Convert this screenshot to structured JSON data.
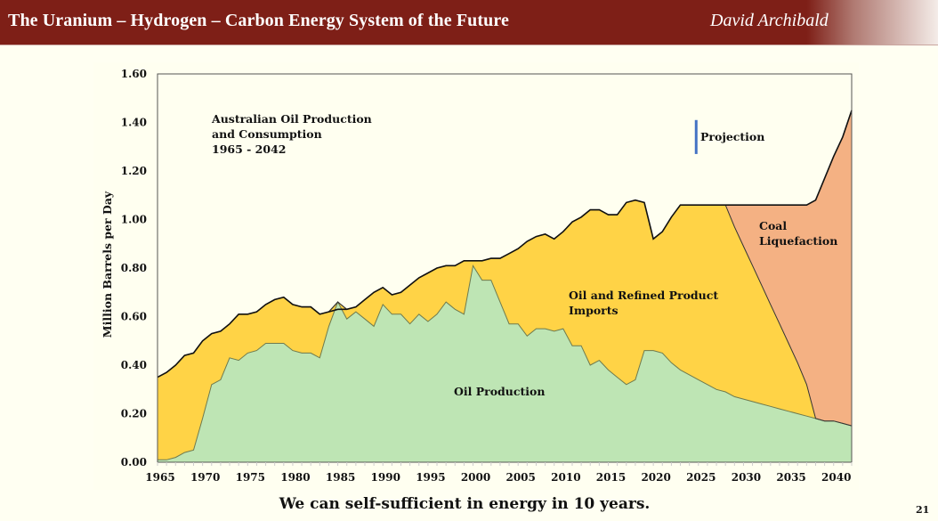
{
  "header": {
    "title": "The Uranium – Hydrogen – Carbon Energy System of the Future",
    "author": "David Archibald"
  },
  "caption": "We can self-sufficient in energy in 10 years.",
  "page_number": "21",
  "colors": {
    "header_bg": "#7E1F17",
    "production": "#BEE5B4",
    "imports": "#FFD346",
    "coal": "#F4B183",
    "consumption_line": "#111111",
    "projection_marker": "#4472C4",
    "plot_bg": "#FFFFF2"
  },
  "chart_data": {
    "type": "area",
    "stacked": true,
    "title": "Australian Oil Production and Consumption 1965 - 2042",
    "title_lines": [
      "Australian Oil Production",
      "and Consumption",
      "1965 - 2042"
    ],
    "xlabel": "",
    "ylabel": "Million Barrels per Day",
    "xlim": [
      1965,
      2042
    ],
    "ylim": [
      0,
      1.6
    ],
    "yticks": [
      "0.00",
      "0.20",
      "0.40",
      "0.60",
      "0.80",
      "1.00",
      "1.20",
      "1.40",
      "1.60"
    ],
    "ytick_values": [
      0,
      0.2,
      0.4,
      0.6,
      0.8,
      1.0,
      1.2,
      1.4,
      1.6
    ],
    "xticks": [
      "1965",
      "1970",
      "1975",
      "1980",
      "1985",
      "1990",
      "1995",
      "2000",
      "2005",
      "2010",
      "2015",
      "2020",
      "2025",
      "2030",
      "2035",
      "2040"
    ],
    "xtick_values": [
      1965,
      1970,
      1975,
      1980,
      1985,
      1990,
      1995,
      2000,
      2005,
      2010,
      2015,
      2020,
      2025,
      2030,
      2035,
      2040
    ],
    "grid": false,
    "projection_start": 2024,
    "annotations": {
      "projection": "Projection",
      "production": "Oil Production",
      "imports": [
        "Oil and Refined Product",
        "Imports"
      ],
      "coal": [
        "Coal",
        "Liquefaction"
      ]
    },
    "x": [
      1965,
      1966,
      1967,
      1968,
      1969,
      1970,
      1971,
      1972,
      1973,
      1974,
      1975,
      1976,
      1977,
      1978,
      1979,
      1980,
      1981,
      1982,
      1983,
      1984,
      1985,
      1986,
      1987,
      1988,
      1989,
      1990,
      1991,
      1992,
      1993,
      1994,
      1995,
      1996,
      1997,
      1998,
      1999,
      2000,
      2001,
      2002,
      2003,
      2004,
      2005,
      2006,
      2007,
      2008,
      2009,
      2010,
      2011,
      2012,
      2013,
      2014,
      2015,
      2016,
      2017,
      2018,
      2019,
      2020,
      2021,
      2022,
      2023,
      2024,
      2025,
      2026,
      2027,
      2028,
      2029,
      2030,
      2031,
      2032,
      2033,
      2034,
      2035,
      2036,
      2037,
      2038,
      2039,
      2040,
      2041,
      2042
    ],
    "series": [
      {
        "name": "Oil Production",
        "values": [
          0.01,
          0.01,
          0.02,
          0.04,
          0.05,
          0.18,
          0.32,
          0.34,
          0.43,
          0.42,
          0.45,
          0.46,
          0.49,
          0.49,
          0.49,
          0.46,
          0.45,
          0.45,
          0.43,
          0.56,
          0.66,
          0.59,
          0.62,
          0.59,
          0.56,
          0.65,
          0.61,
          0.61,
          0.57,
          0.61,
          0.58,
          0.61,
          0.66,
          0.63,
          0.61,
          0.81,
          0.75,
          0.75,
          0.66,
          0.57,
          0.57,
          0.52,
          0.55,
          0.55,
          0.54,
          0.55,
          0.48,
          0.48,
          0.4,
          0.42,
          0.38,
          0.35,
          0.32,
          0.34,
          0.46,
          0.46,
          0.45,
          0.41,
          0.38,
          0.36,
          0.34,
          0.32,
          0.3,
          0.29,
          0.27,
          0.26,
          0.25,
          0.24,
          0.23,
          0.22,
          0.21,
          0.2,
          0.19,
          0.18,
          0.17,
          0.17,
          0.16,
          0.15
        ]
      },
      {
        "name": "Oil and Refined Product Imports",
        "values": [
          0.34,
          0.36,
          0.38,
          0.4,
          0.4,
          0.32,
          0.21,
          0.2,
          0.14,
          0.19,
          0.16,
          0.16,
          0.16,
          0.18,
          0.19,
          0.19,
          0.19,
          0.19,
          0.18,
          0.06,
          0.0,
          0.04,
          0.02,
          0.08,
          0.14,
          0.07,
          0.08,
          0.09,
          0.16,
          0.15,
          0.2,
          0.19,
          0.15,
          0.18,
          0.22,
          0.02,
          0.08,
          0.09,
          0.18,
          0.29,
          0.31,
          0.39,
          0.38,
          0.39,
          0.38,
          0.4,
          0.51,
          0.53,
          0.64,
          0.62,
          0.64,
          0.67,
          0.75,
          0.74,
          0.61,
          0.46,
          0.5,
          0.6,
          0.68,
          0.7,
          0.72,
          0.74,
          0.76,
          0.77,
          0.7,
          0.63,
          0.56,
          0.49,
          0.42,
          0.35,
          0.28,
          0.21,
          0.13,
          0.0,
          0.0,
          0.0,
          0.0,
          0.0
        ]
      },
      {
        "name": "Coal Liquefaction",
        "values": [
          0,
          0,
          0,
          0,
          0,
          0,
          0,
          0,
          0,
          0,
          0,
          0,
          0,
          0,
          0,
          0,
          0,
          0,
          0,
          0,
          0,
          0,
          0,
          0,
          0,
          0,
          0,
          0,
          0,
          0,
          0,
          0,
          0,
          0,
          0,
          0,
          0,
          0,
          0,
          0,
          0,
          0,
          0,
          0,
          0,
          0,
          0,
          0,
          0,
          0,
          0,
          0,
          0,
          0,
          0,
          0,
          0,
          0,
          0,
          0,
          0,
          0,
          0,
          0,
          0.09,
          0.17,
          0.25,
          0.33,
          0.41,
          0.49,
          0.57,
          0.65,
          0.74,
          0.9,
          1.0,
          1.09,
          1.18,
          1.3
        ]
      }
    ],
    "consumption": [
      0.35,
      0.37,
      0.4,
      0.44,
      0.45,
      0.5,
      0.53,
      0.54,
      0.57,
      0.61,
      0.61,
      0.62,
      0.65,
      0.67,
      0.68,
      0.65,
      0.64,
      0.64,
      0.61,
      0.62,
      0.63,
      0.63,
      0.64,
      0.67,
      0.7,
      0.72,
      0.69,
      0.7,
      0.73,
      0.76,
      0.78,
      0.8,
      0.81,
      0.81,
      0.83,
      0.83,
      0.83,
      0.84,
      0.84,
      0.86,
      0.88,
      0.91,
      0.93,
      0.94,
      0.92,
      0.95,
      0.99,
      1.01,
      1.04,
      1.04,
      1.02,
      1.02,
      1.07,
      1.08,
      1.07,
      0.92,
      0.95,
      1.01,
      1.06,
      1.06,
      1.06,
      1.06,
      1.06,
      1.06,
      1.06,
      1.06,
      1.06,
      1.06,
      1.06,
      1.06,
      1.06,
      1.06,
      1.06,
      1.08,
      1.17,
      1.26,
      1.34,
      1.45
    ]
  }
}
